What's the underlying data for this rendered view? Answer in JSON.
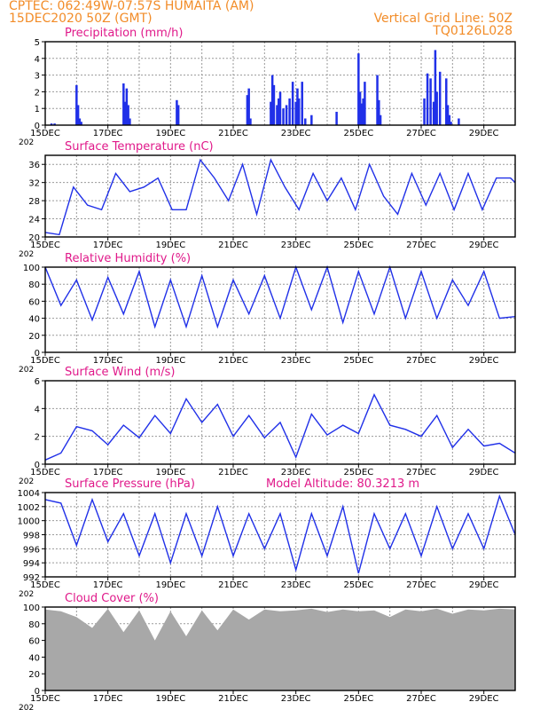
{
  "header": {
    "line1": "CPTEC:   062:49W-07:57S   HUMAITA (AM)",
    "line2": "15DEC2020 50Z (GMT)",
    "grid_note": "Vertical Grid Line: 50Z",
    "code": "TQ0126L028"
  },
  "colors": {
    "header": "#f28c28",
    "panel_title": "#e0198a",
    "series": "#2030e8",
    "cloud": "#a8a8a8",
    "grid": "#9a9a9a"
  },
  "x_axis": {
    "labels": [
      "15DEC",
      "17DEC",
      "19DEC",
      "21DEC",
      "23DEC",
      "25DEC",
      "27DEC",
      "29DEC"
    ],
    "year_stub": "202"
  },
  "panels": [
    {
      "id": "precipitation",
      "title": "Precipitation (mm/h)",
      "chart_data": {
        "type": "bar",
        "ylim": [
          0,
          5
        ],
        "yticks": [
          "0",
          "1",
          "2",
          "3",
          "4",
          "5"
        ],
        "x": [
          0.2,
          0.3,
          1.0,
          1.05,
          1.1,
          1.15,
          2.5,
          2.55,
          2.6,
          2.65,
          2.7,
          4.2,
          4.25,
          6.45,
          6.5,
          6.55,
          7.2,
          7.25,
          7.3,
          7.4,
          7.45,
          7.5,
          7.6,
          7.7,
          7.8,
          7.9,
          8.0,
          8.05,
          8.1,
          8.2,
          8.3,
          8.5,
          9.3,
          10.0,
          10.05,
          10.1,
          10.15,
          10.2,
          10.6,
          10.65,
          10.7,
          12.1,
          12.2,
          12.3,
          12.4,
          12.45,
          12.5,
          12.6,
          12.8,
          12.85,
          12.9,
          12.95,
          13.2
        ],
        "values": [
          0.1,
          0.1,
          2.4,
          1.2,
          0.4,
          0.2,
          2.5,
          1.4,
          2.2,
          1.2,
          0.4,
          1.5,
          1.2,
          1.8,
          2.2,
          0.4,
          1.4,
          3.0,
          2.4,
          1.2,
          1.6,
          2.0,
          1.0,
          1.2,
          1.6,
          2.6,
          1.4,
          2.2,
          1.6,
          2.6,
          0.4,
          0.6,
          0.8,
          4.3,
          2.0,
          1.3,
          1.6,
          2.6,
          3.0,
          1.5,
          0.6,
          1.6,
          3.1,
          2.8,
          1.4,
          4.5,
          2.0,
          3.2,
          2.8,
          1.2,
          0.6,
          0.2,
          0.4
        ]
      }
    },
    {
      "id": "temperature",
      "title": "Surface Temperature (nC)",
      "chart_data": {
        "type": "line",
        "ylim": [
          20,
          38
        ],
        "yticks": [
          "20",
          "24",
          "28",
          "32",
          "36"
        ],
        "x": [
          0,
          0.45,
          0.9,
          1.35,
          1.8,
          2.25,
          2.7,
          3.15,
          3.6,
          4.05,
          4.5,
          4.95,
          5.4,
          5.85,
          6.3,
          6.75,
          7.2,
          7.65,
          8.1,
          8.55,
          9.0,
          9.45,
          9.9,
          10.35,
          10.8,
          11.25,
          11.7,
          12.15,
          12.6,
          13.05,
          13.5,
          13.95,
          14.4,
          14.85,
          15.0
        ],
        "y": [
          21,
          20.5,
          31,
          27,
          26,
          34,
          30,
          31,
          33,
          26,
          26,
          37,
          33,
          28,
          36,
          25,
          37,
          31,
          26,
          34,
          28,
          33,
          26,
          36,
          29,
          25,
          34,
          27,
          34,
          26,
          34,
          26,
          33,
          33,
          32
        ]
      }
    },
    {
      "id": "humidity",
      "title": "Relative Humidity (%)",
      "chart_data": {
        "type": "line",
        "ylim": [
          0,
          100
        ],
        "yticks": [
          "0",
          "20",
          "40",
          "60",
          "80",
          "100"
        ],
        "x": [
          0,
          0.5,
          1.0,
          1.5,
          2.0,
          2.5,
          3.0,
          3.5,
          4.0,
          4.5,
          5.0,
          5.5,
          6.0,
          6.5,
          7.0,
          7.5,
          8.0,
          8.5,
          9.0,
          9.5,
          10.0,
          10.5,
          11.0,
          11.5,
          12.0,
          12.5,
          13.0,
          13.5,
          14.0,
          14.5,
          15.0
        ],
        "y": [
          100,
          55,
          85,
          38,
          88,
          45,
          95,
          30,
          85,
          30,
          90,
          30,
          85,
          45,
          90,
          40,
          100,
          50,
          100,
          35,
          95,
          45,
          100,
          40,
          95,
          40,
          85,
          55,
          95,
          40,
          42
        ]
      }
    },
    {
      "id": "wind",
      "title": "Surface Wind (m/s)",
      "chart_data": {
        "type": "line",
        "ylim": [
          0,
          6
        ],
        "yticks": [
          "0",
          "2",
          "4",
          "6"
        ],
        "x": [
          0,
          0.5,
          1.0,
          1.5,
          2.0,
          2.5,
          3.0,
          3.5,
          4.0,
          4.5,
          5.0,
          5.5,
          6.0,
          6.5,
          7.0,
          7.5,
          8.0,
          8.5,
          9.0,
          9.5,
          10.0,
          10.5,
          11.0,
          11.5,
          12.0,
          12.5,
          13.0,
          13.5,
          14.0,
          14.5,
          15.0
        ],
        "y": [
          0.3,
          0.8,
          2.7,
          2.4,
          1.4,
          2.8,
          1.9,
          3.5,
          2.2,
          4.7,
          3.0,
          4.3,
          2.0,
          3.5,
          1.9,
          3.0,
          0.5,
          3.6,
          2.1,
          2.8,
          2.2,
          5.0,
          2.8,
          2.5,
          2.0,
          3.5,
          1.2,
          2.5,
          1.3,
          1.5,
          0.8
        ]
      }
    },
    {
      "id": "pressure",
      "title": "Surface Pressure (hPa)",
      "subtitle": "Model Altitude: 80.3213 m",
      "chart_data": {
        "type": "line",
        "ylim": [
          992,
          1004
        ],
        "yticks": [
          "992",
          "994",
          "996",
          "998",
          "1000",
          "1002",
          "1004"
        ],
        "x": [
          0,
          0.5,
          1.0,
          1.5,
          2.0,
          2.5,
          3.0,
          3.5,
          4.0,
          4.5,
          5.0,
          5.5,
          6.0,
          6.5,
          7.0,
          7.5,
          8.0,
          8.5,
          9.0,
          9.5,
          10.0,
          10.5,
          11.0,
          11.5,
          12.0,
          12.5,
          13.0,
          13.5,
          14.0,
          14.5,
          15.0
        ],
        "y": [
          1003,
          1002.5,
          996.5,
          1003,
          997,
          1001,
          995,
          1001,
          994,
          1001,
          995,
          1002,
          995,
          1001,
          996,
          1001,
          993,
          1001,
          995,
          1002,
          992.5,
          1001,
          996,
          1001,
          995,
          1002,
          996,
          1001,
          996,
          1003.5,
          998
        ]
      }
    },
    {
      "id": "cloud",
      "title": "Cloud Cover (%)",
      "chart_data": {
        "type": "area",
        "ylim": [
          0,
          100
        ],
        "yticks": [
          "0",
          "20",
          "40",
          "60",
          "80",
          "100"
        ],
        "x": [
          0,
          0.5,
          1.0,
          1.5,
          2.0,
          2.5,
          3.0,
          3.5,
          4.0,
          4.5,
          5.0,
          5.5,
          6.0,
          6.5,
          7.0,
          7.5,
          8.0,
          8.5,
          9.0,
          9.5,
          10.0,
          10.5,
          11.0,
          11.5,
          12.0,
          12.5,
          13.0,
          13.5,
          14.0,
          14.5,
          15.0
        ],
        "y": [
          97,
          95,
          88,
          75,
          98,
          70,
          96,
          60,
          95,
          65,
          96,
          72,
          97,
          85,
          97,
          95,
          96,
          98,
          94,
          97,
          95,
          96,
          88,
          97,
          95,
          98,
          92,
          97,
          96,
          98,
          97
        ]
      }
    }
  ]
}
